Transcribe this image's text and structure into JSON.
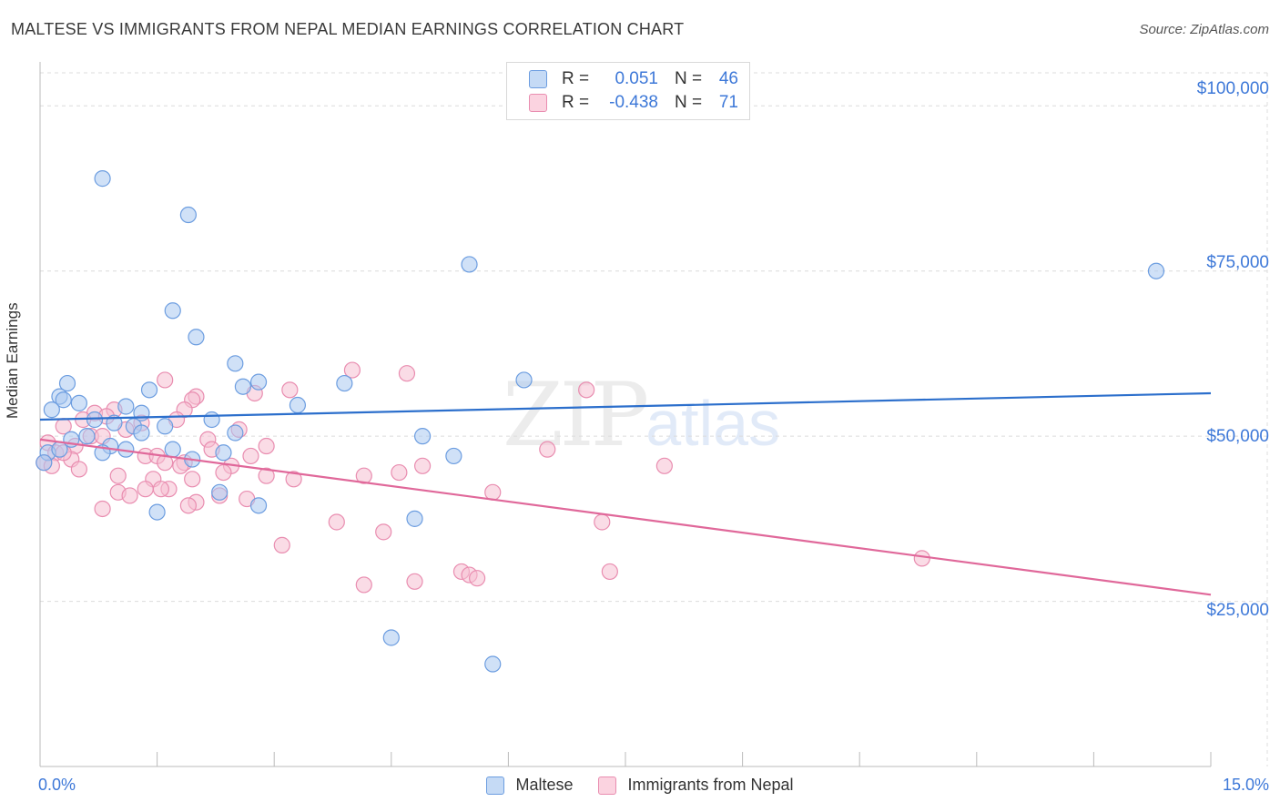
{
  "title": "MALTESE VS IMMIGRANTS FROM NEPAL MEDIAN EARNINGS CORRELATION CHART",
  "source": "Source: ZipAtlas.com",
  "watermark": {
    "zip": "ZIP",
    "atlas": "atlas"
  },
  "legend": {
    "series": [
      {
        "r_label": "R =",
        "r_value": "0.051",
        "n_label": "N =",
        "n_value": "46"
      },
      {
        "r_label": "R =",
        "r_value": "-0.438",
        "n_label": "N =",
        "n_value": "71"
      }
    ]
  },
  "colors": {
    "maltese_fill": "#a9c8f0",
    "maltese_stroke": "#6c9de0",
    "maltese_line": "#2c6fcc",
    "nepal_fill": "#f6bfd1",
    "nepal_stroke": "#e98db0",
    "nepal_line": "#e0689a",
    "grid": "#dcdcdc",
    "axis_text": "#3d78d8"
  },
  "chart_data": {
    "type": "scatter",
    "title": "MALTESE VS IMMIGRANTS FROM NEPAL MEDIAN EARNINGS CORRELATION CHART",
    "xlabel": "",
    "ylabel": "Median Earnings",
    "xlim": [
      0,
      15
    ],
    "ylim": [
      0,
      105000
    ],
    "x_tick_labels": [
      "0.0%",
      "15.0%"
    ],
    "y_ticks": [
      25000,
      50000,
      75000,
      100000
    ],
    "y_tick_labels": [
      "$25,000",
      "$50,000",
      "$75,000",
      "$100,000"
    ],
    "grid": true,
    "series": [
      {
        "name": "Maltese",
        "trend": {
          "x": [
            0,
            15
          ],
          "y": [
            52500,
            56500
          ]
        },
        "points": [
          [
            0.8,
            89000
          ],
          [
            1.9,
            83500
          ],
          [
            5.5,
            76000
          ],
          [
            14.3,
            75000
          ],
          [
            1.7,
            69000
          ],
          [
            2.0,
            65000
          ],
          [
            2.5,
            61000
          ],
          [
            6.2,
            58500
          ],
          [
            3.9,
            58000
          ],
          [
            2.6,
            57500
          ],
          [
            2.8,
            58200
          ],
          [
            0.35,
            58000
          ],
          [
            0.25,
            56000
          ],
          [
            1.4,
            57000
          ],
          [
            0.5,
            55000
          ],
          [
            1.1,
            54500
          ],
          [
            3.3,
            54700
          ],
          [
            0.15,
            54000
          ],
          [
            1.3,
            53500
          ],
          [
            0.3,
            55500
          ],
          [
            2.2,
            52500
          ],
          [
            0.95,
            52000
          ],
          [
            0.7,
            52500
          ],
          [
            1.2,
            51500
          ],
          [
            1.6,
            51500
          ],
          [
            1.3,
            50500
          ],
          [
            2.5,
            50500
          ],
          [
            0.4,
            49500
          ],
          [
            0.6,
            50000
          ],
          [
            4.9,
            50000
          ],
          [
            0.9,
            48500
          ],
          [
            1.1,
            48000
          ],
          [
            0.8,
            47500
          ],
          [
            1.7,
            48000
          ],
          [
            0.1,
            47500
          ],
          [
            5.3,
            47000
          ],
          [
            1.95,
            46500
          ],
          [
            0.05,
            46000
          ],
          [
            2.35,
            47500
          ],
          [
            2.3,
            41500
          ],
          [
            2.8,
            39500
          ],
          [
            1.5,
            38500
          ],
          [
            4.8,
            37500
          ],
          [
            4.5,
            19500
          ],
          [
            5.8,
            15500
          ],
          [
            0.25,
            48000
          ]
        ]
      },
      {
        "name": "Immigrants from Nepal",
        "trend": {
          "x": [
            0,
            15
          ],
          "y": [
            49500,
            26000
          ]
        },
        "points": [
          [
            4.7,
            59500
          ],
          [
            4.0,
            60000
          ],
          [
            1.6,
            58500
          ],
          [
            7.0,
            57000
          ],
          [
            3.2,
            57000
          ],
          [
            2.0,
            56000
          ],
          [
            1.95,
            55500
          ],
          [
            2.75,
            56500
          ],
          [
            1.85,
            54000
          ],
          [
            0.95,
            54000
          ],
          [
            0.7,
            53500
          ],
          [
            0.85,
            53000
          ],
          [
            0.55,
            52500
          ],
          [
            1.3,
            52000
          ],
          [
            1.75,
            52500
          ],
          [
            0.3,
            51500
          ],
          [
            2.55,
            51000
          ],
          [
            1.1,
            51000
          ],
          [
            0.65,
            50000
          ],
          [
            0.8,
            50000
          ],
          [
            0.1,
            49000
          ],
          [
            0.45,
            48500
          ],
          [
            2.15,
            49500
          ],
          [
            2.9,
            48500
          ],
          [
            6.5,
            48000
          ],
          [
            2.2,
            48000
          ],
          [
            0.2,
            47500
          ],
          [
            1.35,
            47000
          ],
          [
            1.5,
            47000
          ],
          [
            2.7,
            47000
          ],
          [
            0.4,
            46500
          ],
          [
            1.6,
            46000
          ],
          [
            1.85,
            46000
          ],
          [
            2.45,
            45500
          ],
          [
            4.9,
            45500
          ],
          [
            8.0,
            45500
          ],
          [
            2.35,
            44500
          ],
          [
            4.6,
            44500
          ],
          [
            4.15,
            44000
          ],
          [
            3.25,
            43500
          ],
          [
            1.45,
            43500
          ],
          [
            1.95,
            43500
          ],
          [
            1.65,
            42000
          ],
          [
            1.35,
            42000
          ],
          [
            1.55,
            42000
          ],
          [
            1.0,
            41500
          ],
          [
            1.15,
            41000
          ],
          [
            2.3,
            41000
          ],
          [
            5.8,
            41500
          ],
          [
            2.65,
            40500
          ],
          [
            2.0,
            40000
          ],
          [
            1.9,
            39500
          ],
          [
            0.8,
            39000
          ],
          [
            3.8,
            37000
          ],
          [
            7.2,
            37000
          ],
          [
            4.4,
            35500
          ],
          [
            3.1,
            33500
          ],
          [
            11.3,
            31500
          ],
          [
            5.4,
            29500
          ],
          [
            5.5,
            29000
          ],
          [
            7.3,
            29500
          ],
          [
            5.6,
            28500
          ],
          [
            4.8,
            28000
          ],
          [
            4.15,
            27500
          ],
          [
            0.05,
            46000
          ],
          [
            0.15,
            45500
          ],
          [
            0.5,
            45000
          ],
          [
            1.0,
            44000
          ],
          [
            2.9,
            44000
          ],
          [
            1.8,
            45500
          ],
          [
            0.3,
            47500
          ]
        ]
      }
    ]
  }
}
